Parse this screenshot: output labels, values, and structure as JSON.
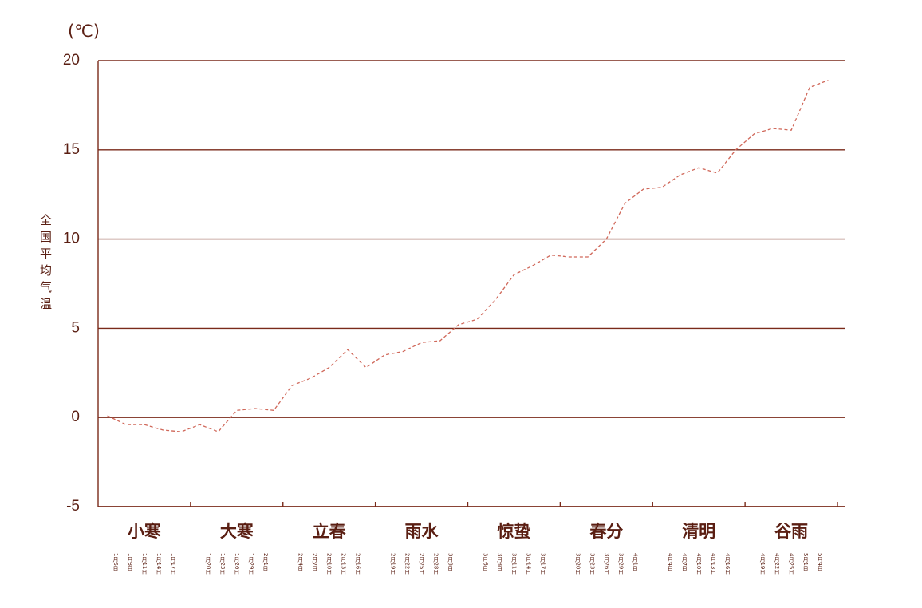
{
  "chart_data": {
    "type": "line",
    "unit_label": "(℃)",
    "y_label": "全国平均气温",
    "category_groups": [
      "小寒",
      "大寒",
      "立春",
      "雨水",
      "惊蛰",
      "春分",
      "清明",
      "谷雨"
    ],
    "categories": [
      "1月5日",
      "1月8日",
      "1月11日",
      "1月14日",
      "1月17日",
      "1月20日",
      "1月23日",
      "1月26日",
      "1月29日",
      "2月1日",
      "2月4日",
      "2月7日",
      "2月10日",
      "2月13日",
      "2月16日",
      "2月19日",
      "2月22日",
      "2月25日",
      "2月28日",
      "3月3日",
      "3月5日",
      "3月8日",
      "3月11日",
      "3月14日",
      "3月17日",
      "3月20日",
      "3月23日",
      "3月26日",
      "3月29日",
      "4月1日",
      "4月4日",
      "4月7日",
      "4月10日",
      "4月13日",
      "4月16日",
      "4月19日",
      "4月22日",
      "4月25日",
      "5月1日",
      "5月4日"
    ],
    "series": [
      {
        "color": "#d0685a",
        "values": [
          0.1,
          -0.4,
          -0.4,
          -0.7,
          -0.8,
          -0.4,
          -0.8,
          0.4,
          0.5,
          0.4,
          1.8,
          2.2,
          2.8,
          3.8,
          2.8,
          3.5,
          3.7,
          4.2,
          4.3,
          5.2,
          5.5,
          6.6,
          8.0,
          8.5,
          9.1,
          9.0,
          9.0,
          10.0,
          12.0,
          12.8,
          12.9,
          13.6,
          14.0,
          13.7,
          15.0,
          15.9,
          16.2,
          16.1,
          18.5,
          18.9
        ]
      }
    ],
    "ylim": [
      -5,
      20
    ],
    "yticks": [
      -5,
      0,
      5,
      10,
      15,
      20
    ],
    "grid": true,
    "axis_color": "#7a2a1a"
  }
}
